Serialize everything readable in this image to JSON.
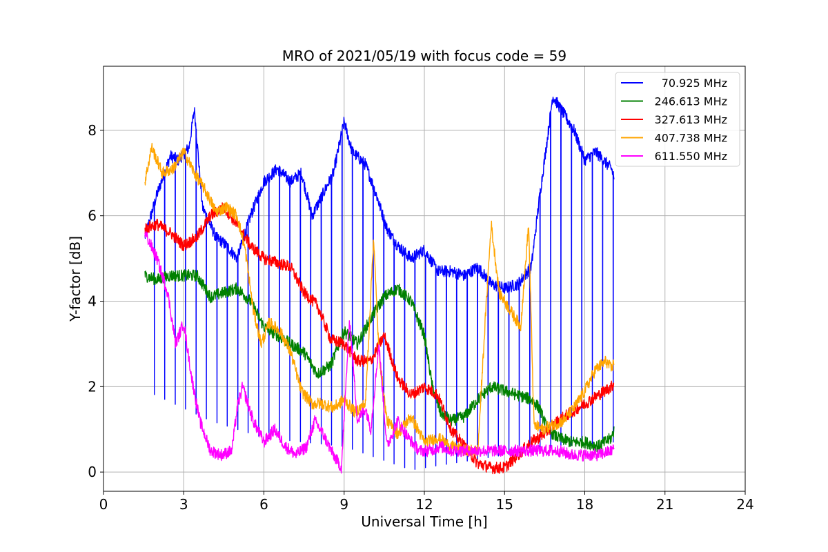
{
  "chart_data": {
    "type": "line",
    "title": "MRO of 2021/05/19 with focus code = 59",
    "xlabel": "Universal Time [h]",
    "ylabel": "Y-factor [dB]",
    "xlim": [
      0,
      24
    ],
    "ylim": [
      -0.45,
      9.5
    ],
    "xticks": [
      0,
      3,
      6,
      9,
      12,
      15,
      18,
      21,
      24
    ],
    "yticks": [
      0,
      2,
      4,
      6,
      8
    ],
    "grid": true,
    "legend": "top-right",
    "series": [
      {
        "name": "70.925 MHz",
        "color": "#0000ff",
        "dips_every_h": 0.39,
        "dip_floor": [
          [
            1.6,
            1.9
          ],
          [
            4,
            1.2
          ],
          [
            6,
            0.8
          ],
          [
            9,
            0.6
          ],
          [
            11.5,
            0.05
          ],
          [
            13,
            0.2
          ],
          [
            15,
            0.4
          ],
          [
            17,
            0.6
          ],
          [
            19,
            0.7
          ]
        ],
        "x": [
          1.55,
          2.0,
          2.5,
          2.8,
          3.2,
          3.4,
          3.7,
          4.2,
          4.6,
          5.0,
          5.5,
          6.0,
          6.5,
          7.0,
          7.4,
          7.8,
          8.2,
          8.6,
          9.0,
          9.3,
          9.8,
          10.2,
          10.6,
          11.0,
          11.5,
          12.0,
          12.5,
          13.0,
          13.5,
          14.0,
          14.5,
          15.0,
          15.5,
          16.0,
          16.3,
          16.6,
          16.8,
          17.2,
          17.6,
          18.0,
          18.4,
          18.7,
          19.0,
          19.1
        ],
        "y": [
          5.5,
          6.5,
          7.4,
          7.3,
          7.6,
          8.5,
          6.2,
          5.5,
          5.3,
          5.0,
          6.0,
          6.8,
          7.1,
          6.8,
          7.0,
          6.0,
          6.5,
          7.0,
          8.2,
          7.5,
          7.2,
          6.5,
          5.7,
          5.3,
          5.0,
          5.2,
          4.7,
          4.7,
          4.6,
          4.8,
          4.4,
          4.3,
          4.4,
          4.8,
          6.4,
          7.8,
          8.8,
          8.4,
          8.0,
          7.3,
          7.5,
          7.3,
          7.1,
          6.9
        ]
      },
      {
        "name": "246.613 MHz",
        "color": "#008000",
        "x": [
          1.55,
          2.0,
          2.5,
          3.0,
          3.5,
          4.0,
          4.5,
          5.0,
          5.5,
          6.0,
          6.5,
          7.0,
          7.5,
          8.0,
          8.5,
          9.0,
          9.5,
          10.0,
          10.5,
          11.0,
          11.5,
          12.0,
          12.3,
          12.6,
          13.0,
          13.5,
          14.0,
          14.5,
          15.0,
          15.5,
          16.0,
          16.3,
          16.6,
          17.0,
          17.5,
          18.0,
          18.5,
          19.0,
          19.1
        ],
        "y": [
          4.6,
          4.5,
          4.6,
          4.6,
          4.6,
          4.1,
          4.2,
          4.3,
          4.0,
          3.4,
          3.2,
          3.0,
          2.8,
          2.3,
          2.5,
          3.3,
          3.0,
          3.6,
          4.1,
          4.3,
          4.0,
          3.2,
          2.0,
          1.4,
          1.2,
          1.3,
          1.7,
          2.0,
          1.9,
          1.8,
          1.7,
          1.5,
          1.0,
          0.8,
          0.7,
          0.7,
          0.6,
          0.8,
          1.0
        ]
      },
      {
        "name": "327.613 MHz",
        "color": "#ff0000",
        "x": [
          1.55,
          2.0,
          2.5,
          3.0,
          3.5,
          4.0,
          4.5,
          5.0,
          5.5,
          6.0,
          6.5,
          7.0,
          7.5,
          8.0,
          8.5,
          9.0,
          9.5,
          10.0,
          10.5,
          11.0,
          11.5,
          12.0,
          12.5,
          13.0,
          13.5,
          14.0,
          14.5,
          15.0,
          15.5,
          16.0,
          16.5,
          17.0,
          17.5,
          18.0,
          18.5,
          19.0,
          19.1
        ],
        "y": [
          5.7,
          5.8,
          5.6,
          5.3,
          5.5,
          6.0,
          6.2,
          5.8,
          5.3,
          5.0,
          4.9,
          4.8,
          4.2,
          3.9,
          3.1,
          3.0,
          2.6,
          2.6,
          3.2,
          2.2,
          1.8,
          2.0,
          1.8,
          1.0,
          0.6,
          0.2,
          0.1,
          0.1,
          0.4,
          0.7,
          0.9,
          1.2,
          1.4,
          1.6,
          1.8,
          2.0,
          2.1
        ]
      },
      {
        "name": "407.738 MHz",
        "color": "#ffa500",
        "x": [
          1.55,
          1.8,
          2.2,
          2.6,
          3.0,
          3.4,
          3.8,
          4.2,
          4.6,
          5.0,
          5.3,
          5.6,
          5.9,
          6.2,
          6.6,
          7.0,
          7.4,
          7.8,
          8.2,
          8.6,
          9.0,
          9.4,
          9.8,
          10.1,
          10.3,
          10.6,
          11.0,
          11.5,
          12.0,
          12.5,
          13.0,
          13.5,
          14.0,
          14.3,
          14.5,
          14.8,
          15.2,
          15.6,
          15.9,
          16.1,
          16.4,
          16.8,
          17.2,
          17.6,
          18.0,
          18.4,
          18.8,
          19.0,
          19.1
        ],
        "y": [
          6.8,
          7.6,
          7.0,
          7.1,
          7.5,
          7.0,
          6.6,
          6.1,
          6.2,
          6.0,
          5.2,
          3.8,
          3.0,
          3.5,
          3.3,
          2.8,
          1.9,
          1.6,
          1.6,
          1.5,
          1.7,
          1.4,
          1.6,
          5.5,
          2.8,
          1.2,
          0.9,
          1.3,
          0.7,
          0.8,
          0.6,
          0.5,
          0.5,
          3.8,
          5.8,
          4.2,
          3.8,
          3.4,
          5.8,
          1.1,
          1.0,
          1.1,
          1.2,
          1.5,
          1.9,
          2.4,
          2.6,
          2.4,
          2.6
        ]
      },
      {
        "name": "611.550 MHz",
        "color": "#ff00ff",
        "x": [
          1.55,
          2.0,
          2.4,
          2.7,
          3.0,
          3.3,
          3.6,
          4.0,
          4.4,
          4.8,
          5.0,
          5.2,
          5.6,
          6.0,
          6.4,
          6.8,
          7.2,
          7.6,
          7.9,
          8.2,
          8.6,
          8.9,
          9.2,
          9.5,
          9.8,
          10.0,
          10.3,
          10.6,
          11.0,
          11.4,
          11.8,
          12.2,
          12.6,
          13.0,
          13.5,
          14.0,
          14.5,
          15.0,
          15.5,
          16.0,
          16.5,
          17.0,
          17.5,
          18.0,
          18.5,
          19.0,
          19.1
        ],
        "y": [
          5.6,
          5.0,
          4.2,
          3.0,
          3.5,
          2.2,
          1.2,
          0.5,
          0.4,
          0.5,
          1.5,
          2.0,
          1.2,
          0.7,
          1.0,
          0.6,
          0.4,
          0.6,
          1.2,
          0.9,
          0.4,
          0.1,
          3.6,
          1.2,
          1.5,
          1.0,
          3.0,
          0.6,
          1.2,
          0.8,
          0.5,
          0.5,
          0.6,
          0.5,
          0.5,
          0.5,
          0.5,
          0.5,
          0.5,
          0.5,
          0.5,
          0.5,
          0.4,
          0.4,
          0.4,
          0.5,
          0.6
        ]
      }
    ]
  }
}
